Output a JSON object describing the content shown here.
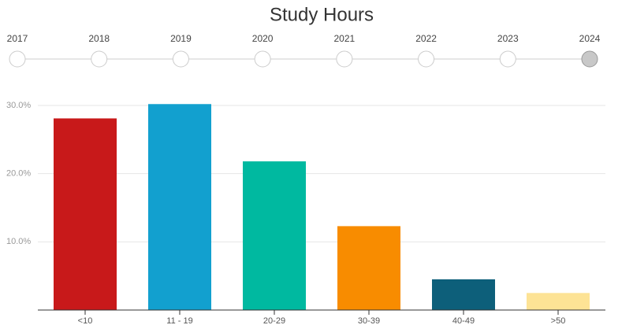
{
  "timeline": {
    "years": [
      "2017",
      "2018",
      "2019",
      "2020",
      "2021",
      "2022",
      "2023",
      "2024"
    ],
    "selected": 7
  },
  "chart_data": {
    "type": "bar",
    "title": "Study Hours",
    "categories": [
      "<10",
      "11 - 19",
      "20-29",
      "30-39",
      "40-49",
      ">50"
    ],
    "values": [
      28.1,
      30.2,
      21.8,
      12.3,
      4.5,
      2.5
    ],
    "colors": [
      "#c8191a",
      "#12a0cf",
      "#00b9a0",
      "#f88c00",
      "#0d5f7a",
      "#fde395"
    ],
    "ylim": [
      0,
      30
    ],
    "yticks": [
      {
        "value": 10,
        "label": "10.0%"
      },
      {
        "value": 20,
        "label": "20.0%"
      },
      {
        "value": 30,
        "label": "30.0%"
      }
    ],
    "grid": true
  }
}
